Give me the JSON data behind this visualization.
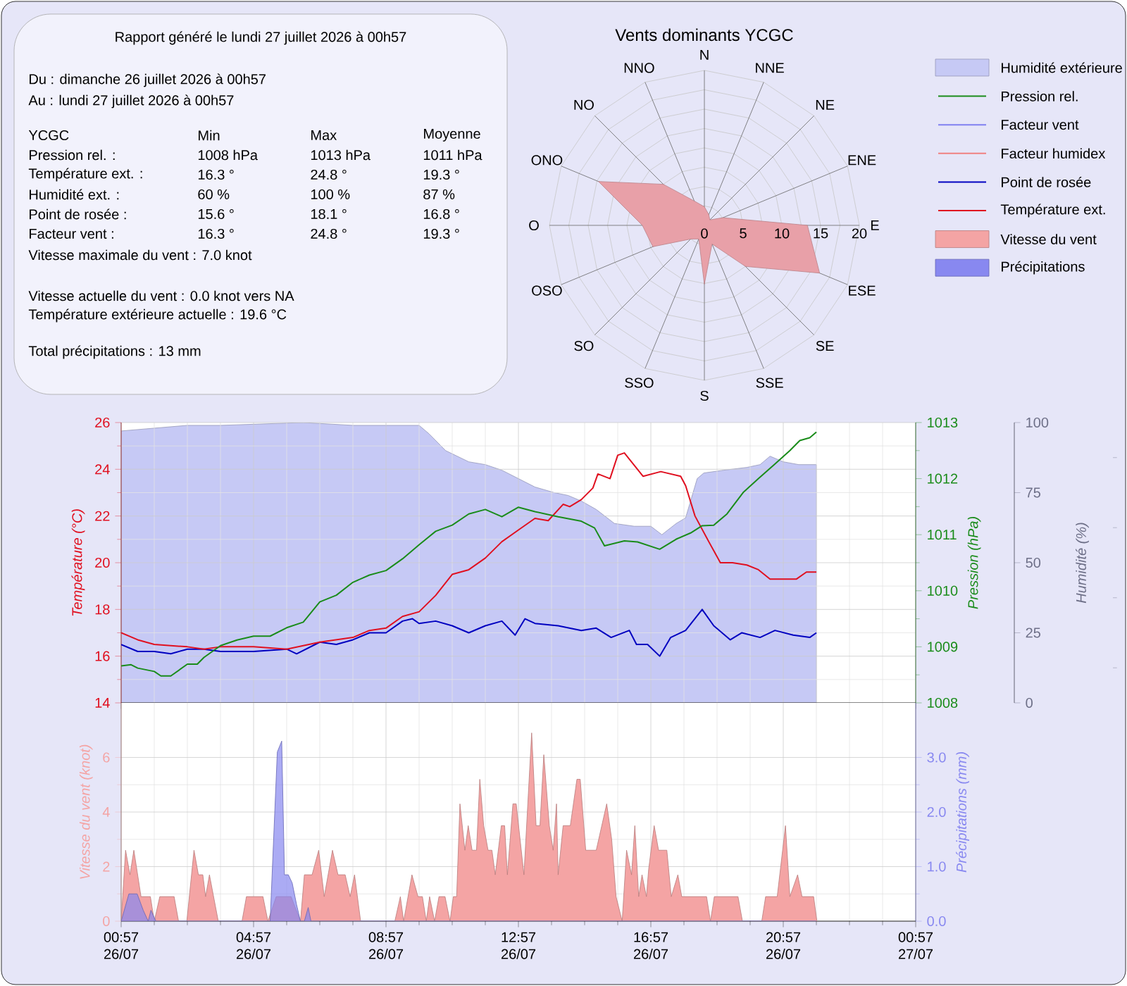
{
  "chart_data": [
    {
      "type": "other",
      "title": "Rapport généré le lundi 27 juillet 2026 à 00h57",
      "annotations": [
        "Du : dimanche 26 juillet 2026 à 00h57",
        "Au : lundi 27 juillet 2026 à 00h57",
        "YCGC",
        "Min",
        "Max",
        "Moyenne",
        "Pression rel. :",
        "1008 hPa",
        "1013 hPa",
        "1011 hPa",
        "Température ext. :",
        "16.3 °",
        "24.8 °",
        "19.3 °",
        "Humidité ext. :",
        "60 %",
        "100 %",
        "87 %",
        "Point de rosée :",
        "15.6 °",
        "18.1 °",
        "16.8 °",
        "Facteur vent :",
        "16.3 °",
        "24.8 °",
        "19.3 °",
        "Vitesse maximale du vent : 7.0 knot",
        "Vitesse actuelle du vent : 0.0 knot vers  NA",
        "Température extérieure actuelle :  19.6 °C",
        "Total précipitations : 13 mm"
      ]
    },
    {
      "type": "radar",
      "title": "Vents dominants YCGC",
      "categories": [
        "N",
        "NNE",
        "NE",
        "ENE",
        "E",
        "ESE",
        "SE",
        "SSE",
        "S",
        "SSO",
        "SO",
        "OSO",
        "O",
        "ONO",
        "NO",
        "NNO"
      ],
      "ylim": [
        0,
        20
      ],
      "yticks": [
        0,
        5,
        10,
        15,
        20
      ],
      "grid": true,
      "series": [
        {
          "color": "#e8a0a8",
          "values": [
            2.4,
            1.5,
            1.0,
            2.6,
            13.3,
            16.1,
            7.5,
            2.6,
            7.6,
            1.9,
            2.5,
            7.2,
            8.0,
            14.8,
            7.5,
            3.4
          ]
        }
      ]
    },
    {
      "type": "line",
      "ylabel": "Température (°C)",
      "y2label": "Pression (hPa)",
      "y3label": "Humidité (%)",
      "xlim": [
        "2026-07-26T00:57",
        "2026-07-27T00:57"
      ],
      "xticks": [
        {
          "value": "2026-07-26T00:57",
          "label": null
        },
        {
          "value": "2026-07-26T04:57",
          "label": null
        },
        {
          "value": "2026-07-26T08:57",
          "label": null
        },
        {
          "value": "2026-07-26T12:57",
          "label": null
        },
        {
          "value": "2026-07-26T16:57",
          "label": null
        },
        {
          "value": "2026-07-26T20:57",
          "label": null
        },
        {
          "value": "2026-07-27T00:57",
          "label": null
        }
      ],
      "tick_labels": "y",
      "ylim": [
        14,
        26
      ],
      "yticks": [
        14,
        16,
        18,
        20,
        22,
        24,
        26
      ],
      "y2lim": [
        1008,
        1013
      ],
      "y2ticks": [
        1008,
        1009,
        1010,
        1011,
        1012,
        1013
      ],
      "y3lim": [
        0,
        100
      ],
      "y3ticks": [
        0,
        25,
        50,
        75,
        100
      ],
      "grid": true,
      "legend": "top right",
      "series": [
        {
          "name": "Humidité extérieure",
          "type": "area",
          "axis": "y3",
          "color": "#c6c9f5",
          "x": [
            "2026-07-26T00:57",
            "2026-07-26T01:57",
            "2026-07-26T02:57",
            "2026-07-26T03:57",
            "2026-07-26T06:27",
            "2026-07-26T07:57",
            "2026-07-26T09:57",
            "2026-07-26T10:15",
            "2026-07-26T10:45",
            "2026-07-26T11:27",
            "2026-07-26T11:57",
            "2026-07-26T12:27",
            "2026-07-26T12:57",
            "2026-07-26T13:27",
            "2026-07-26T14:02",
            "2026-07-26T14:27",
            "2026-07-26T14:51",
            "2026-07-26T15:18",
            "2026-07-26T15:51",
            "2026-07-26T16:27",
            "2026-07-26T16:57",
            "2026-07-26T17:17",
            "2026-07-26T17:43",
            "2026-07-26T18:00",
            "2026-07-26T18:21",
            "2026-07-26T18:33",
            "2026-07-26T19:09",
            "2026-07-26T19:51",
            "2026-07-26T20:15",
            "2026-07-26T20:33",
            "2026-07-26T20:57",
            "2026-07-26T21:25",
            "2026-07-26T21:57"
          ],
          "values": [
            97,
            98,
            99,
            99,
            100,
            99,
            99,
            96,
            90,
            86,
            85,
            83,
            80,
            77,
            75,
            74,
            72,
            69,
            64,
            63,
            63,
            60,
            64,
            66,
            80,
            82,
            83,
            84,
            85,
            88,
            86,
            85,
            85
          ]
        },
        {
          "name": "Pression rel.",
          "type": "line",
          "axis": "y2",
          "color": "#1a8c1a",
          "x": [
            "2026-07-26T00:57",
            "2026-07-26T01:15",
            "2026-07-26T01:27",
            "2026-07-26T01:57",
            "2026-07-26T02:09",
            "2026-07-26T02:27",
            "2026-07-26T02:57",
            "2026-07-26T03:15",
            "2026-07-26T03:27",
            "2026-07-26T03:57",
            "2026-07-26T04:27",
            "2026-07-26T04:57",
            "2026-07-26T05:27",
            "2026-07-26T05:57",
            "2026-07-26T06:27",
            "2026-07-26T06:57",
            "2026-07-26T07:27",
            "2026-07-26T07:57",
            "2026-07-26T08:27",
            "2026-07-26T08:57",
            "2026-07-26T09:27",
            "2026-07-26T09:57",
            "2026-07-26T10:27",
            "2026-07-26T10:57",
            "2026-07-26T11:27",
            "2026-07-26T11:57",
            "2026-07-26T12:27",
            "2026-07-26T12:57",
            "2026-07-26T13:27",
            "2026-07-26T14:09",
            "2026-07-26T14:51",
            "2026-07-26T15:15",
            "2026-07-26T15:33",
            "2026-07-26T16:09",
            "2026-07-26T16:33",
            "2026-07-26T17:13",
            "2026-07-26T17:43",
            "2026-07-26T18:09",
            "2026-07-26T18:30",
            "2026-07-26T18:51",
            "2026-07-26T19:15",
            "2026-07-26T19:45",
            "2026-07-26T20:12",
            "2026-07-26T20:42",
            "2026-07-26T21:09",
            "2026-07-26T21:27",
            "2026-07-26T21:45",
            "2026-07-26T21:57"
          ],
          "values": [
            1008.66,
            1008.68,
            1008.62,
            1008.56,
            1008.48,
            1008.48,
            1008.69,
            1008.69,
            1008.81,
            1009.02,
            1009.12,
            1009.19,
            1009.19,
            1009.34,
            1009.44,
            1009.8,
            1009.92,
            1010.15,
            1010.28,
            1010.36,
            1010.57,
            1010.82,
            1011.06,
            1011.17,
            1011.37,
            1011.45,
            1011.32,
            1011.49,
            1011.41,
            1011.32,
            1011.24,
            1011.12,
            1010.8,
            1010.89,
            1010.87,
            1010.74,
            1010.92,
            1011.03,
            1011.16,
            1011.17,
            1011.37,
            1011.76,
            1012.0,
            1012.26,
            1012.5,
            1012.68,
            1012.73,
            1012.83
          ]
        },
        {
          "name": "Facteur vent",
          "type": "line",
          "color": "#8080f0",
          "values": [
            null
          ]
        },
        {
          "name": "Facteur humidex",
          "type": "line",
          "color": "#f08080",
          "values": [
            null
          ]
        },
        {
          "name": "Point de rosée",
          "type": "line",
          "color": "#0000c0",
          "x": [
            "2026-07-26T00:57",
            "2026-07-26T01:27",
            "2026-07-26T01:57",
            "2026-07-26T02:27",
            "2026-07-26T02:57",
            "2026-07-26T03:27",
            "2026-07-26T03:57",
            "2026-07-26T04:57",
            "2026-07-26T05:57",
            "2026-07-26T06:15",
            "2026-07-26T06:57",
            "2026-07-26T07:27",
            "2026-07-26T07:57",
            "2026-07-26T08:27",
            "2026-07-26T08:57",
            "2026-07-26T09:27",
            "2026-07-26T09:45",
            "2026-07-26T09:57",
            "2026-07-26T10:27",
            "2026-07-26T10:57",
            "2026-07-26T11:27",
            "2026-07-26T11:57",
            "2026-07-26T12:27",
            "2026-07-26T12:51",
            "2026-07-26T13:09",
            "2026-07-26T13:27",
            "2026-07-26T14:09",
            "2026-07-26T14:51",
            "2026-07-26T15:18",
            "2026-07-26T15:45",
            "2026-07-26T16:18",
            "2026-07-26T16:31",
            "2026-07-26T16:51",
            "2026-07-26T17:13",
            "2026-07-26T17:33",
            "2026-07-26T18:00",
            "2026-07-26T18:30",
            "2026-07-26T18:51",
            "2026-07-26T19:21",
            "2026-07-26T19:42",
            "2026-07-26T20:15",
            "2026-07-26T20:42",
            "2026-07-26T21:15",
            "2026-07-26T21:45",
            "2026-07-26T21:57"
          ],
          "values": [
            16.5,
            16.2,
            16.2,
            16.1,
            16.3,
            16.3,
            16.2,
            16.2,
            16.3,
            16.1,
            16.6,
            16.5,
            16.7,
            17.0,
            17.0,
            17.5,
            17.6,
            17.4,
            17.5,
            17.3,
            17.0,
            17.3,
            17.5,
            16.9,
            17.6,
            17.4,
            17.3,
            17.1,
            17.2,
            16.8,
            17.1,
            16.5,
            16.5,
            16.0,
            16.8,
            17.1,
            18.0,
            17.3,
            16.7,
            17.0,
            16.8,
            17.1,
            16.9,
            16.8,
            17.0
          ]
        },
        {
          "name": "Température ext.",
          "type": "line",
          "color": "#e01020",
          "x": [
            "2026-07-26T00:57",
            "2026-07-26T01:27",
            "2026-07-26T01:57",
            "2026-07-26T02:57",
            "2026-07-26T03:27",
            "2026-07-26T03:57",
            "2026-07-26T04:57",
            "2026-07-26T05:57",
            "2026-07-26T06:57",
            "2026-07-26T07:57",
            "2026-07-26T08:27",
            "2026-07-26T08:57",
            "2026-07-26T09:27",
            "2026-07-26T09:57",
            "2026-07-26T10:27",
            "2026-07-26T10:57",
            "2026-07-26T11:27",
            "2026-07-26T11:57",
            "2026-07-26T12:27",
            "2026-07-26T12:57",
            "2026-07-26T13:27",
            "2026-07-26T13:51",
            "2026-07-26T14:18",
            "2026-07-26T14:30",
            "2026-07-26T14:51",
            "2026-07-26T15:12",
            "2026-07-26T15:21",
            "2026-07-26T15:43",
            "2026-07-26T15:57",
            "2026-07-26T16:09",
            "2026-07-26T16:43",
            "2026-07-26T17:15",
            "2026-07-26T17:51",
            "2026-07-26T18:00",
            "2026-07-26T18:17",
            "2026-07-26T18:42",
            "2026-07-26T19:03",
            "2026-07-26T19:25",
            "2026-07-26T19:51",
            "2026-07-26T20:12",
            "2026-07-26T20:33",
            "2026-07-26T20:57",
            "2026-07-26T21:21",
            "2026-07-26T21:39",
            "2026-07-26T21:57"
          ],
          "values": [
            17.0,
            16.7,
            16.5,
            16.4,
            16.3,
            16.4,
            16.4,
            16.3,
            16.6,
            16.8,
            17.1,
            17.2,
            17.7,
            17.9,
            18.6,
            19.5,
            19.7,
            20.2,
            20.9,
            21.4,
            21.9,
            21.8,
            22.5,
            22.4,
            22.7,
            23.2,
            23.8,
            23.6,
            24.6,
            24.7,
            23.7,
            23.9,
            23.7,
            23.3,
            22.0,
            20.9,
            20.0,
            20.0,
            19.9,
            19.7,
            19.3,
            19.3,
            19.3,
            19.6,
            19.6
          ]
        }
      ]
    },
    {
      "type": "area",
      "ylabel": "Vitesse du vent (knot)",
      "y2label": "Précipitations (mm)",
      "xlim": [
        "2026-07-26T00:57",
        "2026-07-27T00:57"
      ],
      "xticks": [
        {
          "value": "2026-07-26T00:57",
          "label": "00:57 26/07"
        },
        {
          "value": "2026-07-26T04:57",
          "label": "04:57 26/07"
        },
        {
          "value": "2026-07-26T08:57",
          "label": "08:57 26/07"
        },
        {
          "value": "2026-07-26T12:57",
          "label": "12:57 26/07"
        },
        {
          "value": "2026-07-26T16:57",
          "label": "16:57 26/07"
        },
        {
          "value": "2026-07-26T20:57",
          "label": "20:57 26/07"
        },
        {
          "value": "2026-07-27T00:57",
          "label": "00:57 27/07"
        }
      ],
      "ylim": [
        0,
        8
      ],
      "yticks": [
        0,
        2,
        4,
        6
      ],
      "y2lim": [
        0,
        4
      ],
      "y2ticks": [
        {
          "value": 0,
          "label": "0.0"
        },
        {
          "value": 1,
          "label": "1.0"
        },
        {
          "value": 2,
          "label": "2.0"
        },
        {
          "value": 3,
          "label": "3.0"
        }
      ],
      "grid": true,
      "legend": "top right",
      "series": [
        {
          "name": "Vitesse du vent",
          "type": "area",
          "color": "#f4a4a4",
          "x": [
            "2026-07-26T00:57",
            "2026-07-26T01:05",
            "2026-07-26T01:13",
            "2026-07-26T01:20",
            "2026-07-26T01:33",
            "2026-07-26T01:50",
            "2026-07-26T01:57",
            "2026-07-26T02:07",
            "2026-07-26T02:33",
            "2026-07-26T02:41",
            "2026-07-26T02:56",
            "2026-07-26T03:09",
            "2026-07-26T03:17",
            "2026-07-26T03:25",
            "2026-07-26T03:30",
            "2026-07-26T03:37",
            "2026-07-26T03:53",
            "2026-07-26T04:36",
            "2026-07-26T04:44",
            "2026-07-26T05:14",
            "2026-07-26T05:23",
            "2026-07-26T05:38",
            "2026-07-26T06:05",
            "2026-07-26T06:22",
            "2026-07-26T06:29",
            "2026-07-26T06:43",
            "2026-07-26T06:55",
            "2026-07-26T07:05",
            "2026-07-26T07:20",
            "2026-07-26T07:30",
            "2026-07-26T07:43",
            "2026-07-26T07:52",
            "2026-07-26T08:00",
            "2026-07-26T08:11",
            "2026-07-26T09:13",
            "2026-07-26T09:23",
            "2026-07-26T09:29",
            "2026-07-26T09:44",
            "2026-07-26T09:55",
            "2026-07-26T10:03",
            "2026-07-26T10:10",
            "2026-07-26T10:16",
            "2026-07-26T10:25",
            "2026-07-26T10:33",
            "2026-07-26T10:44",
            "2026-07-26T10:53",
            "2026-07-26T10:59",
            "2026-07-26T11:05",
            "2026-07-26T11:11",
            "2026-07-26T11:20",
            "2026-07-26T11:26",
            "2026-07-26T11:33",
            "2026-07-26T11:41",
            "2026-07-26T11:47",
            "2026-07-26T11:54",
            "2026-07-26T12:02",
            "2026-07-26T12:09",
            "2026-07-26T12:15",
            "2026-07-26T12:26",
            "2026-07-26T12:32",
            "2026-07-26T12:37",
            "2026-07-26T12:47",
            "2026-07-26T12:53",
            "2026-07-26T13:07",
            "2026-07-26T13:21",
            "2026-07-26T13:29",
            "2026-07-26T13:36",
            "2026-07-26T13:43",
            "2026-07-26T13:53",
            "2026-07-26T14:00",
            "2026-07-26T14:06",
            "2026-07-26T14:09",
            "2026-07-26T14:18",
            "2026-07-26T14:31",
            "2026-07-26T14:43",
            "2026-07-26T14:49",
            "2026-07-26T14:59",
            "2026-07-26T15:18",
            "2026-07-26T15:37",
            "2026-07-26T15:46",
            "2026-07-26T15:54",
            "2026-07-26T16:05",
            "2026-07-26T16:13",
            "2026-07-26T16:22",
            "2026-07-26T16:28",
            "2026-07-26T16:35",
            "2026-07-26T16:41",
            "2026-07-26T16:49",
            "2026-07-26T16:53",
            "2026-07-26T17:03",
            "2026-07-26T17:11",
            "2026-07-26T17:26",
            "2026-07-26T17:34",
            "2026-07-26T17:46",
            "2026-07-26T17:53",
            "2026-07-26T18:38",
            "2026-07-26T18:45",
            "2026-07-26T18:52",
            "2026-07-26T19:35",
            "2026-07-26T19:43",
            "2026-07-26T20:18",
            "2026-07-26T20:25",
            "2026-07-26T20:46",
            "2026-07-26T21:01",
            "2026-07-26T21:09",
            "2026-07-26T21:23",
            "2026-07-26T21:31",
            "2026-07-26T21:52",
            "2026-07-26T21:58"
          ],
          "values": [
            0,
            2.6,
            1.7,
            2.6,
            0.9,
            0.9,
            0,
            0.9,
            0.9,
            0,
            0,
            2.6,
            1.7,
            1.7,
            0.9,
            1.7,
            0,
            0,
            0.9,
            0.9,
            0,
            0.9,
            0.9,
            0,
            1.7,
            1.7,
            2.6,
            0.9,
            2.6,
            1.7,
            1.7,
            0.9,
            1.7,
            0,
            0,
            0.9,
            0,
            1.7,
            0.9,
            0.9,
            0,
            0.9,
            0,
            0.9,
            0.9,
            0,
            0.9,
            0.9,
            4.3,
            2.6,
            3.5,
            2.6,
            2.6,
            5.2,
            3.5,
            2.6,
            2.6,
            1.7,
            3.5,
            3.5,
            1.7,
            4.3,
            4.3,
            1.7,
            6.9,
            3.5,
            3.5,
            6.1,
            3.5,
            2.6,
            4.3,
            1.7,
            3.5,
            3.5,
            5.2,
            5.2,
            2.6,
            2.6,
            4.3,
            3.0,
            0.9,
            0,
            2.6,
            1.7,
            3.5,
            0.9,
            1.7,
            0.9,
            1.9,
            3.5,
            2.6,
            2.6,
            0.9,
            1.7,
            0.9,
            0.9,
            0,
            0.9,
            0.9,
            0,
            0,
            0.9,
            0.9,
            3.5,
            0.9,
            1.7,
            0.9,
            0.9,
            0
          ]
        },
        {
          "name": "Précipitations",
          "type": "area",
          "axis": "y2",
          "color": "#8888f0",
          "x": [
            "2026-07-26T00:57",
            "2026-07-26T01:11",
            "2026-07-26T01:26",
            "2026-07-26T01:37",
            "2026-07-26T01:46",
            "2026-07-26T01:51",
            "2026-07-26T02:00",
            "2026-07-26T05:27",
            "2026-07-26T05:40",
            "2026-07-26T05:48",
            "2026-07-26T05:53",
            "2026-07-26T06:00",
            "2026-07-26T06:07",
            "2026-07-26T06:15",
            "2026-07-26T06:22",
            "2026-07-26T06:29",
            "2026-07-26T06:36",
            "2026-07-26T06:41",
            "2026-07-26T21:57"
          ],
          "values": [
            0,
            0.5,
            0.5,
            0.2,
            0,
            0.2,
            0,
            0,
            3.1,
            3.3,
            0.85,
            0.85,
            0.7,
            0.3,
            0,
            0,
            0.25,
            0,
            0
          ]
        }
      ]
    }
  ]
}
